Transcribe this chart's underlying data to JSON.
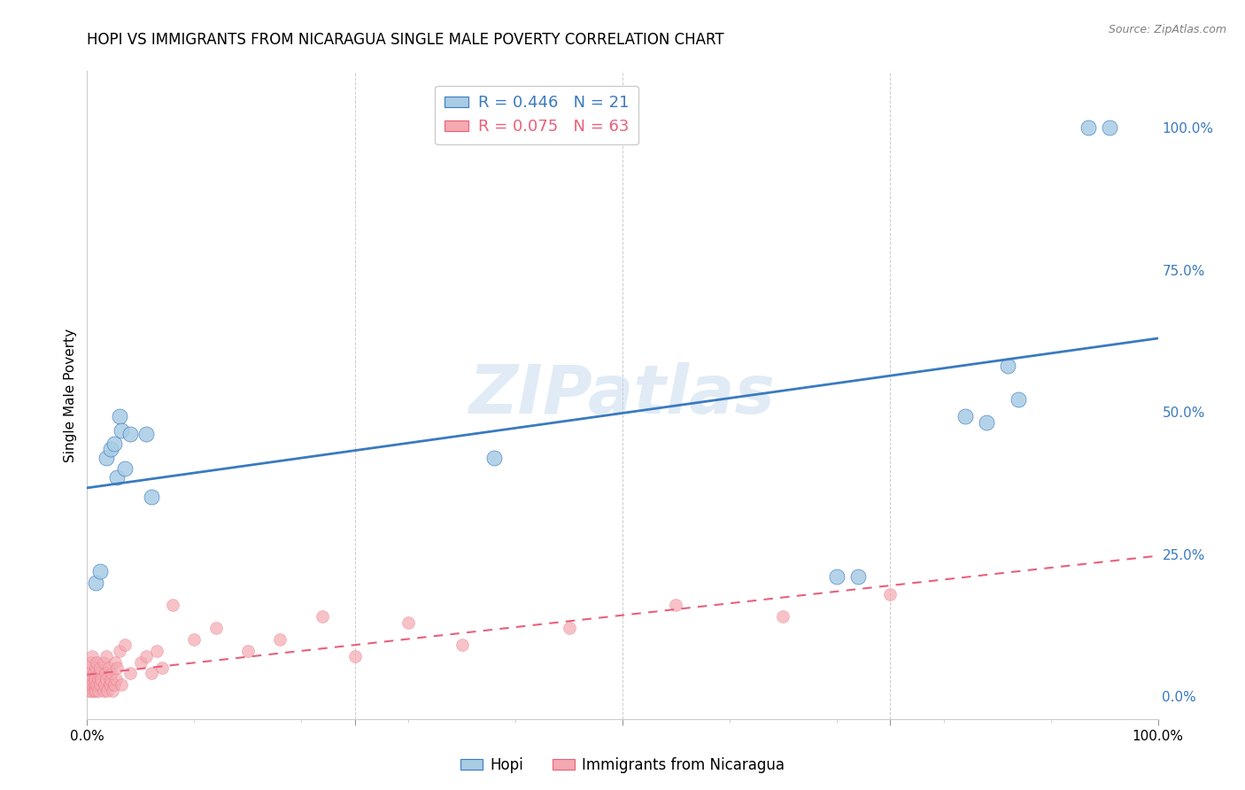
{
  "title": "HOPI VS IMMIGRANTS FROM NICARAGUA SINGLE MALE POVERTY CORRELATION CHART",
  "source": "Source: ZipAtlas.com",
  "ylabel": "Single Male Poverty",
  "watermark": "ZIPatlas",
  "hopi_R": 0.446,
  "hopi_N": 21,
  "nicaragua_R": 0.075,
  "nicaragua_N": 63,
  "hopi_color": "#a8cce4",
  "nicaragua_color": "#f4a8b0",
  "hopi_line_color": "#3a7abf",
  "nicaragua_line_color": "#e8607a",
  "background_color": "#ffffff",
  "grid_color": "#cccccc",
  "hopi_x": [
    0.008,
    0.012,
    0.018,
    0.022,
    0.025,
    0.028,
    0.03,
    0.032,
    0.035,
    0.04,
    0.055,
    0.06,
    0.38,
    0.7,
    0.72,
    0.82,
    0.84,
    0.86,
    0.87,
    0.935,
    0.955
  ],
  "hopi_y": [
    0.2,
    0.22,
    0.42,
    0.435,
    0.445,
    0.385,
    0.492,
    0.468,
    0.4,
    0.462,
    0.462,
    0.35,
    0.42,
    0.21,
    0.21,
    0.492,
    0.482,
    0.582,
    0.522,
    1.0,
    1.0
  ],
  "nicaragua_x": [
    0.001,
    0.001,
    0.001,
    0.002,
    0.002,
    0.003,
    0.003,
    0.004,
    0.004,
    0.005,
    0.005,
    0.006,
    0.006,
    0.007,
    0.007,
    0.008,
    0.008,
    0.009,
    0.009,
    0.01,
    0.01,
    0.011,
    0.012,
    0.012,
    0.013,
    0.015,
    0.015,
    0.016,
    0.017,
    0.018,
    0.018,
    0.019,
    0.02,
    0.021,
    0.022,
    0.023,
    0.024,
    0.025,
    0.026,
    0.027,
    0.028,
    0.03,
    0.032,
    0.035,
    0.04,
    0.05,
    0.055,
    0.06,
    0.065,
    0.07,
    0.08,
    0.1,
    0.12,
    0.15,
    0.18,
    0.22,
    0.25,
    0.3,
    0.35,
    0.45,
    0.55,
    0.65,
    0.75
  ],
  "nicaragua_y": [
    0.02,
    0.03,
    0.05,
    0.01,
    0.04,
    0.02,
    0.06,
    0.01,
    0.03,
    0.02,
    0.07,
    0.01,
    0.04,
    0.02,
    0.03,
    0.01,
    0.05,
    0.02,
    0.06,
    0.01,
    0.03,
    0.04,
    0.02,
    0.05,
    0.03,
    0.01,
    0.06,
    0.02,
    0.04,
    0.03,
    0.07,
    0.01,
    0.05,
    0.02,
    0.03,
    0.04,
    0.01,
    0.02,
    0.06,
    0.03,
    0.05,
    0.08,
    0.02,
    0.09,
    0.04,
    0.06,
    0.07,
    0.04,
    0.08,
    0.05,
    0.16,
    0.1,
    0.12,
    0.08,
    0.1,
    0.14,
    0.07,
    0.13,
    0.09,
    0.12,
    0.16,
    0.14,
    0.18
  ],
  "xlim": [
    0.0,
    1.0
  ],
  "ylim": [
    -0.04,
    1.1
  ],
  "xticks": [
    0.0,
    0.25,
    0.5,
    0.75,
    1.0
  ],
  "xticklabels": [
    "0.0%",
    "",
    "",
    "",
    "100.0%"
  ],
  "yticks": [
    0.0,
    0.25,
    0.5,
    0.75,
    1.0
  ],
  "yticklabels_right": [
    "0.0%",
    "25.0%",
    "50.0%",
    "75.0%",
    "100.0%"
  ],
  "legend_labels": [
    "Hopi",
    "Immigrants from Nicaragua"
  ],
  "figsize": [
    14.06,
    8.92
  ],
  "dpi": 100
}
